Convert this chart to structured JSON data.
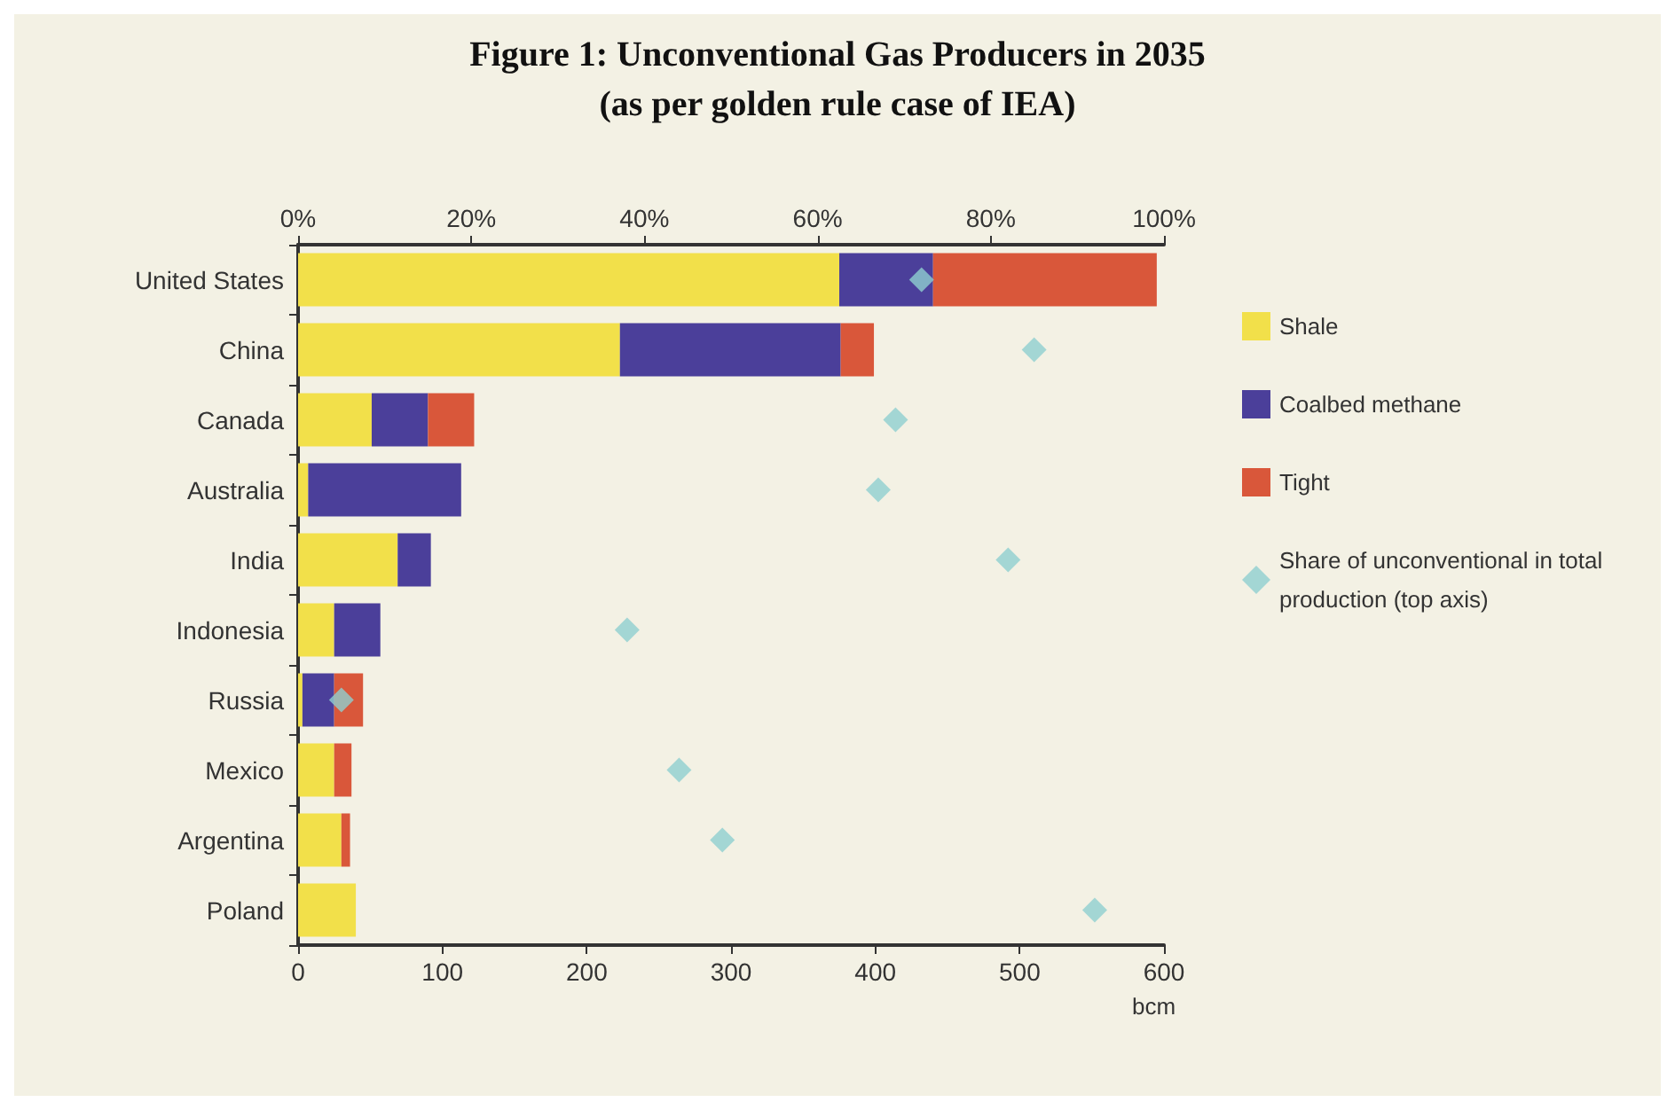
{
  "chart_data": {
    "type": "bar",
    "orientation": "horizontal",
    "stacked": true,
    "title": "Figure 1: Unconventional Gas Producers in 2035",
    "subtitle": "(as per golden rule case of IEA)",
    "xlabel": "bcm",
    "categories": [
      "United States",
      "China",
      "Canada",
      "Australia",
      "India",
      "Indonesia",
      "Russia",
      "Mexico",
      "Argentina",
      "Poland"
    ],
    "series": [
      {
        "name": "Shale",
        "color": "#f2e04a",
        "values": [
          375,
          223,
          51,
          7,
          69,
          25,
          3,
          25,
          30,
          40
        ]
      },
      {
        "name": "Coalbed methane",
        "color": "#4b3f9a",
        "values": [
          65,
          153,
          39,
          106,
          23,
          32,
          22,
          0,
          0,
          0
        ]
      },
      {
        "name": "Tight",
        "color": "#d9573a",
        "values": [
          155,
          23,
          32,
          0,
          0,
          0,
          20,
          12,
          6,
          0
        ]
      },
      {
        "name": "Share of unconventional in total production (top axis)",
        "type": "scatter",
        "axis": "x2",
        "marker": "diamond",
        "color": "#8ecfcf",
        "values": [
          72,
          85,
          69,
          67,
          82,
          38,
          5,
          44,
          49,
          92
        ]
      }
    ],
    "xlim": [
      0,
      600
    ],
    "xticks": [
      0,
      100,
      200,
      300,
      400,
      500,
      600
    ],
    "x2lim": [
      0,
      100
    ],
    "x2ticks": [
      {
        "value": 0,
        "label": "0%"
      },
      {
        "value": 20,
        "label": "20%"
      },
      {
        "value": 40,
        "label": "40%"
      },
      {
        "value": 60,
        "label": "60%"
      },
      {
        "value": 80,
        "label": "80%"
      },
      {
        "value": 100,
        "label": "100%"
      }
    ],
    "grid": false,
    "legend": "right"
  }
}
